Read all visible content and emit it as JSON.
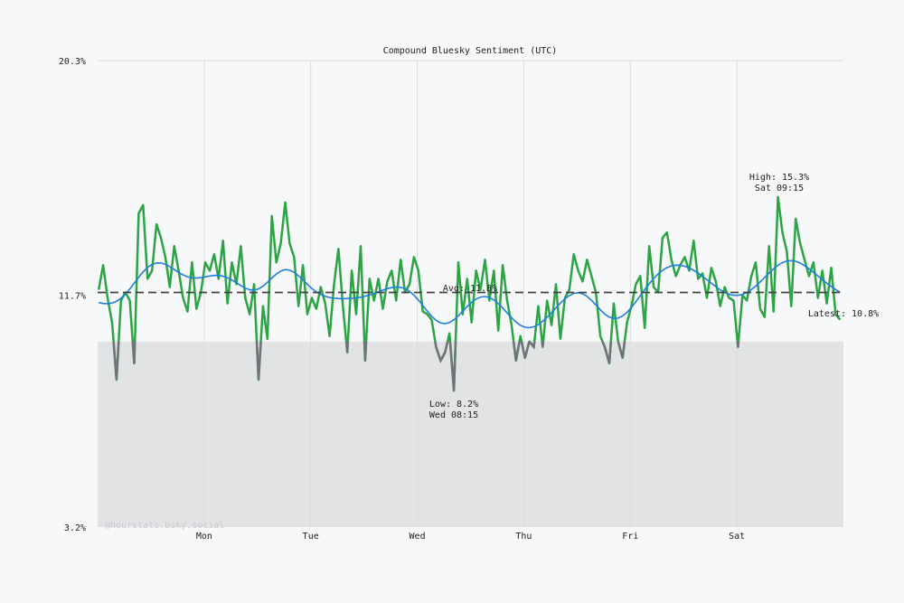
{
  "chart_data": {
    "type": "line",
    "title": "Compound Bluesky Sentiment (UTC)",
    "xlabel": "",
    "ylabel": "",
    "ylim": [
      3.2,
      20.3
    ],
    "y_tick_labels": [
      "20.3%",
      "11.7%",
      "3.2%"
    ],
    "y_ticks": [
      20.3,
      11.7,
      3.2
    ],
    "x_tick_labels": [
      "Mon",
      "Tue",
      "Wed",
      "Thu",
      "Fri",
      "Sat"
    ],
    "x_resolution": "hourly",
    "grid": true,
    "negative_band_max": 10.0,
    "series": [
      {
        "values": [
          11.9,
          12.8,
          11.6,
          10.7,
          8.6,
          11.5,
          11.8,
          11.5,
          9.2,
          14.7,
          15.0,
          12.3,
          12.6,
          14.3,
          13.8,
          13.1,
          12.0,
          13.5,
          12.6,
          11.6,
          11.1,
          12.9,
          11.2,
          11.8,
          12.9,
          12.6,
          13.2,
          12.3,
          13.7,
          11.4,
          12.9,
          12.1,
          13.5,
          11.6,
          11.0,
          12.1,
          8.6,
          11.3,
          10.1,
          14.6,
          12.9,
          13.6,
          15.1,
          13.6,
          13.1,
          11.3,
          12.8,
          11.0,
          11.6,
          11.2,
          12.0,
          11.4,
          10.2,
          12.1,
          13.4,
          11.3,
          9.6,
          12.6,
          11.0,
          13.5,
          9.3,
          12.3,
          11.5,
          12.3,
          11.2,
          12.2,
          12.6,
          11.5,
          13.0,
          11.8,
          12.1,
          13.1,
          12.6,
          11.1,
          11.0,
          10.8,
          9.8,
          9.3,
          9.6,
          10.3,
          8.2,
          12.9,
          11.0,
          12.3,
          10.7,
          12.6,
          11.9,
          13.0,
          11.5,
          12.6,
          10.4,
          12.8,
          11.5,
          10.6,
          9.3,
          10.2,
          9.4,
          10.0,
          9.8,
          11.3,
          9.8,
          11.5,
          10.6,
          12.1,
          10.1,
          11.6,
          11.9,
          13.2,
          12.6,
          12.2,
          13.0,
          12.4,
          11.8,
          10.2,
          9.8,
          9.2,
          11.4,
          10.0,
          9.4,
          10.7,
          11.3,
          12.1,
          12.4,
          10.5,
          13.5,
          12.0,
          11.8,
          13.8,
          14.0,
          13.0,
          12.4,
          12.8,
          13.1,
          12.6,
          13.7,
          12.3,
          12.5,
          11.6,
          12.7,
          12.2,
          11.3,
          12.0,
          11.6,
          11.5,
          9.8,
          11.7,
          11.5,
          12.4,
          12.9,
          11.2,
          10.9,
          13.5,
          11.1,
          15.3,
          14.0,
          13.3,
          11.3,
          14.5,
          13.6,
          13.0,
          12.4,
          12.9,
          11.6,
          12.6,
          11.4,
          12.7,
          11.0,
          10.8
        ]
      }
    ],
    "average": 11.8,
    "annotations": {
      "avg_label": "Avg: 11.8%",
      "high_label": "High: 15.3%",
      "high_time": "Sat 09:15",
      "low_label": "Low: 8.2%",
      "low_time": "Wed 08:15",
      "latest_label": "Latest: 10.8%"
    },
    "watermark": "@hourstats.bsky.social",
    "colors": {
      "line_positive": "#2ca444",
      "line_negative": "#6e7478",
      "trend": "#1f7fe0",
      "average": "#444444",
      "negative_band": "#e2e3e5",
      "grid": "#dddddd"
    }
  }
}
